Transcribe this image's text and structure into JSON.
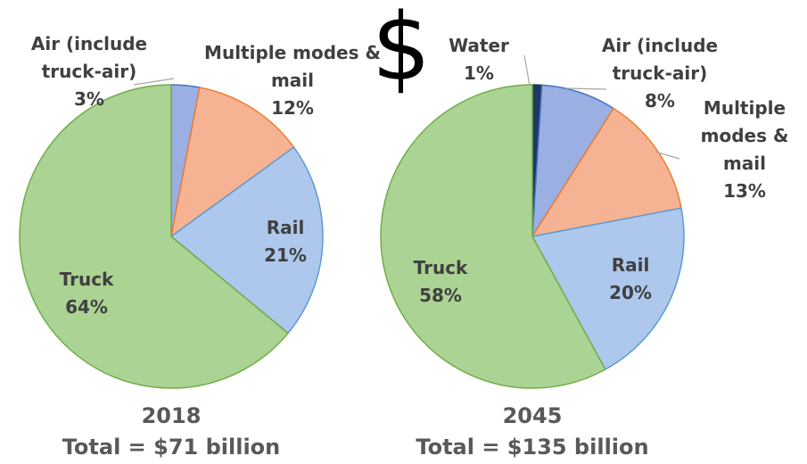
{
  "header": "$",
  "chart_data": [
    {
      "type": "pie",
      "title": "2018",
      "subtitle": "Total = $71 billion",
      "categories": [
        "Air (include truck-air)",
        "Multiple modes & mail",
        "Rail",
        "Truck"
      ],
      "values": [
        3,
        12,
        21,
        64
      ],
      "value_labels": [
        "3%",
        "12%",
        "21%",
        "64%"
      ],
      "colors": [
        "#9bafe2",
        "#f6b394",
        "#adc8ec",
        "#abd393"
      ],
      "edge_colors": [
        "#4472c4",
        "#ed7d31",
        "#5b9bd5",
        "#70ad47"
      ]
    },
    {
      "type": "pie",
      "title": "2045",
      "subtitle": "Total = $135 billion",
      "categories": [
        "Water",
        "Air (include truck-air)",
        "Multiple modes & mail",
        "Rail",
        "Truck"
      ],
      "values": [
        1,
        8,
        13,
        20,
        58
      ],
      "value_labels": [
        "1%",
        "8%",
        "13%",
        "20%",
        "58%"
      ],
      "colors": [
        "#203864",
        "#9bafe2",
        "#f6b394",
        "#adc8ec",
        "#abd393"
      ],
      "edge_colors": [
        "#203864",
        "#4472c4",
        "#ed7d31",
        "#5b9bd5",
        "#70ad47"
      ]
    }
  ]
}
